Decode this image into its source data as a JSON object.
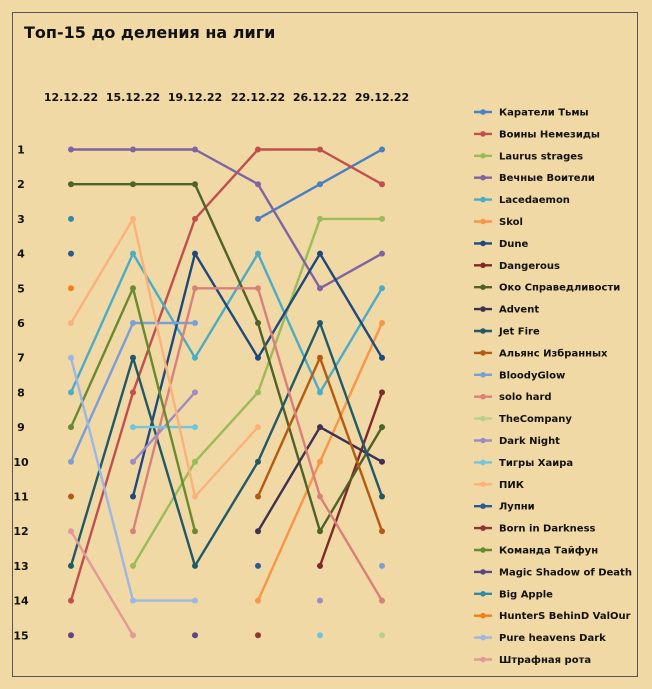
{
  "chart_data": {
    "type": "line",
    "title": "Топ-15 до деления на лиги",
    "x": [
      "12.12.22",
      "15.12.22",
      "19.12.22",
      "22.12.22",
      "26.12.22",
      "29.12.22"
    ],
    "y_ticks": [
      1,
      2,
      3,
      4,
      5,
      6,
      7,
      8,
      9,
      10,
      11,
      12,
      13,
      14,
      15
    ],
    "y_inverted": true,
    "ylim": [
      1,
      15
    ],
    "grid": false,
    "legend_position": "right",
    "series": [
      {
        "name": "Каратели Тьмы",
        "color": "#4a7fc1",
        "values": [
          null,
          null,
          null,
          3,
          2,
          1
        ]
      },
      {
        "name": "Воины Немезиды",
        "color": "#c0504d",
        "values": [
          14,
          8,
          3,
          1,
          1,
          2
        ]
      },
      {
        "name": "Laurus strages",
        "color": "#9bbb59",
        "values": [
          null,
          13,
          10,
          8,
          3,
          3
        ]
      },
      {
        "name": "Вечные Воители",
        "color": "#8064a2",
        "values": [
          1,
          1,
          1,
          2,
          5,
          4
        ]
      },
      {
        "name": "Lacedaemon",
        "color": "#4bacc6",
        "values": [
          8,
          4,
          7,
          4,
          8,
          5
        ]
      },
      {
        "name": "Skol",
        "color": "#f79646",
        "values": [
          null,
          null,
          null,
          14,
          10,
          6
        ]
      },
      {
        "name": "Dune",
        "color": "#1f497d",
        "values": [
          null,
          11,
          4,
          7,
          4,
          7
        ]
      },
      {
        "name": "Dangerous",
        "color": "#7f2a27",
        "values": [
          null,
          null,
          null,
          null,
          13,
          8
        ]
      },
      {
        "name": "Око Справедливости",
        "color": "#4f6228",
        "values": [
          2,
          2,
          2,
          6,
          12,
          9
        ]
      },
      {
        "name": "Advent",
        "color": "#3f3151",
        "values": [
          null,
          null,
          null,
          12,
          9,
          10
        ]
      },
      {
        "name": "Jet Fire",
        "color": "#215967",
        "values": [
          13,
          7,
          13,
          10,
          6,
          11
        ]
      },
      {
        "name": "Альянс Избранных",
        "color": "#b35b10",
        "values": [
          11,
          null,
          null,
          11,
          7,
          12
        ]
      },
      {
        "name": "BloodyGlow",
        "color": "#7a9ed6",
        "values": [
          10,
          6,
          6,
          null,
          null,
          13
        ]
      },
      {
        "name": "solo hard",
        "color": "#d9807b",
        "values": [
          null,
          12,
          5,
          5,
          11,
          14
        ]
      },
      {
        "name": "TheCompany",
        "color": "#b7d08e",
        "values": [
          null,
          null,
          null,
          null,
          null,
          15
        ]
      },
      {
        "name": "Dark Night",
        "color": "#a08cc3",
        "values": [
          null,
          10,
          8,
          null,
          14,
          null
        ]
      },
      {
        "name": "Тигры Хаира",
        "color": "#70c6df",
        "values": [
          null,
          9,
          9,
          null,
          15,
          null
        ]
      },
      {
        "name": "ПИК",
        "color": "#fab27a",
        "values": [
          6,
          3,
          11,
          9,
          null,
          null
        ]
      },
      {
        "name": "Лупни",
        "color": "#2b5a92",
        "values": [
          4,
          null,
          null,
          13,
          null,
          null
        ]
      },
      {
        "name": "Born in Darkness",
        "color": "#923532",
        "values": [
          null,
          null,
          null,
          15,
          null,
          null
        ]
      },
      {
        "name": "Команда Тайфун",
        "color": "#6a8a2f",
        "values": [
          9,
          5,
          12,
          null,
          null,
          null
        ]
      },
      {
        "name": "Magic Shadow of Death",
        "color": "#5d4582",
        "values": [
          15,
          null,
          15,
          null,
          null,
          null
        ]
      },
      {
        "name": "Big Apple",
        "color": "#2e8ca9",
        "values": [
          3,
          null,
          null,
          null,
          null,
          null
        ]
      },
      {
        "name": "HunterS BehinD ValOur",
        "color": "#f07e1b",
        "values": [
          5,
          null,
          null,
          null,
          null,
          null
        ]
      },
      {
        "name": "Pure heavens Dark",
        "color": "#9db6e4",
        "values": [
          7,
          14,
          14,
          null,
          null,
          null
        ]
      },
      {
        "name": "Штрафная рота",
        "color": "#e09a98",
        "values": [
          12,
          15,
          null,
          null,
          null,
          null
        ]
      }
    ]
  }
}
